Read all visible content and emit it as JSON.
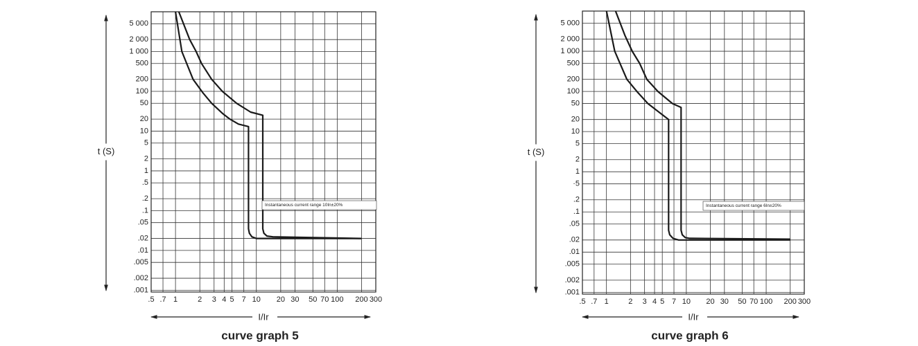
{
  "chart_data": [
    {
      "type": "line",
      "title": "curve graph 5",
      "xlabel": "I/Ir",
      "ylabel": "t (S)",
      "annotation": "Instantaneous current range 10In±20%",
      "xlog": true,
      "ylog": true,
      "grid": true,
      "color": "#1a1a1a",
      "xlim": [
        0.5,
        300
      ],
      "ylim": [
        0.0009,
        10000
      ],
      "xticks": [
        {
          "value": 0.5,
          "label": ".5"
        },
        {
          "value": 0.7,
          "label": ".7"
        },
        1,
        2,
        3,
        4,
        5,
        7,
        10,
        20,
        30,
        50,
        70,
        100,
        200,
        300
      ],
      "yticks": [
        {
          "value": 5000,
          "label": "5 000"
        },
        {
          "value": 2000,
          "label": "2 000"
        },
        {
          "value": 1000,
          "label": "1 000"
        },
        500,
        200,
        100,
        50,
        20,
        10,
        5,
        2,
        1,
        {
          "value": 0.5,
          "label": ".5"
        },
        {
          "value": 0.2,
          "label": ".2"
        },
        {
          "value": 0.1,
          "label": ".1"
        },
        {
          "value": 0.05,
          "label": ".05"
        },
        {
          "value": 0.02,
          "label": ".02"
        },
        {
          "value": 0.01,
          "label": ".01"
        },
        {
          "value": 0.005,
          "label": ".005"
        },
        {
          "value": 0.002,
          "label": ".002"
        },
        {
          "value": 0.001,
          "label": ".001"
        }
      ],
      "series": [
        {
          "x": [
            1.0,
            1.2,
            1.65,
            2.2,
            2.8,
            3.8,
            4.7,
            6,
            8,
            8,
            8.2,
            8.8,
            10,
            200
          ],
          "values": [
            10000,
            1000,
            200,
            90,
            50,
            28,
            20,
            15,
            13,
            0.035,
            0.027,
            0.022,
            0.02,
            0.02
          ]
        },
        {
          "x": [
            1.1,
            1.5,
            1.8,
            2.1,
            2.8,
            3.8,
            5.7,
            8.5,
            12,
            12,
            12.4,
            13.5,
            16,
            200
          ],
          "values": [
            10000,
            2000,
            1000,
            500,
            200,
            100,
            50,
            30,
            25,
            0.035,
            0.027,
            0.023,
            0.022,
            0.02
          ]
        }
      ]
    },
    {
      "type": "line",
      "title": "curve graph 6",
      "xlabel": "I/Ir",
      "ylabel": "t (S)",
      "annotation": "Instantaneous current range 6In±20%",
      "xlog": true,
      "ylog": true,
      "grid": true,
      "color": "#1a1a1a",
      "xlim": [
        0.5,
        300
      ],
      "ylim": [
        0.0009,
        10000
      ],
      "xticks": [
        {
          "value": 0.5,
          "label": ".5"
        },
        {
          "value": 0.7,
          "label": ".7"
        },
        1,
        2,
        3,
        4,
        5,
        7,
        10,
        20,
        30,
        50,
        70,
        100,
        200,
        300
      ],
      "yticks": [
        {
          "value": 5000,
          "label": "5 000"
        },
        {
          "value": 2000,
          "label": "2 000"
        },
        {
          "value": 1000,
          "label": "1 000"
        },
        500,
        200,
        100,
        50,
        20,
        10,
        5,
        2,
        1,
        {
          "value": 0.5,
          "label": "·5"
        },
        {
          "value": 0.2,
          "label": ".2"
        },
        {
          "value": 0.1,
          "label": ".1"
        },
        {
          "value": 0.05,
          "label": ".05"
        },
        {
          "value": 0.02,
          "label": ".02"
        },
        {
          "value": 0.01,
          "label": ".01"
        },
        {
          "value": 0.005,
          "label": ".005"
        },
        {
          "value": 0.002,
          "label": ".002"
        },
        {
          "value": 0.001,
          "label": ".001"
        }
      ],
      "series": [
        {
          "x": [
            1.0,
            1.27,
            1.8,
            2.4,
            3.3,
            4.6,
            6,
            6,
            6.2,
            6.8,
            8,
            200
          ],
          "values": [
            10000,
            1000,
            200,
            100,
            50,
            30,
            20,
            0.035,
            0.027,
            0.022,
            0.02,
            0.02
          ]
        },
        {
          "x": [
            1.3,
            1.7,
            2.1,
            2.6,
            3.2,
            4.4,
            6.7,
            8.6,
            8.6,
            8.9,
            9.7,
            11,
            200
          ],
          "values": [
            10000,
            2500,
            1000,
            500,
            200,
            100,
            50,
            40,
            0.035,
            0.027,
            0.023,
            0.022,
            0.021
          ]
        }
      ]
    }
  ]
}
